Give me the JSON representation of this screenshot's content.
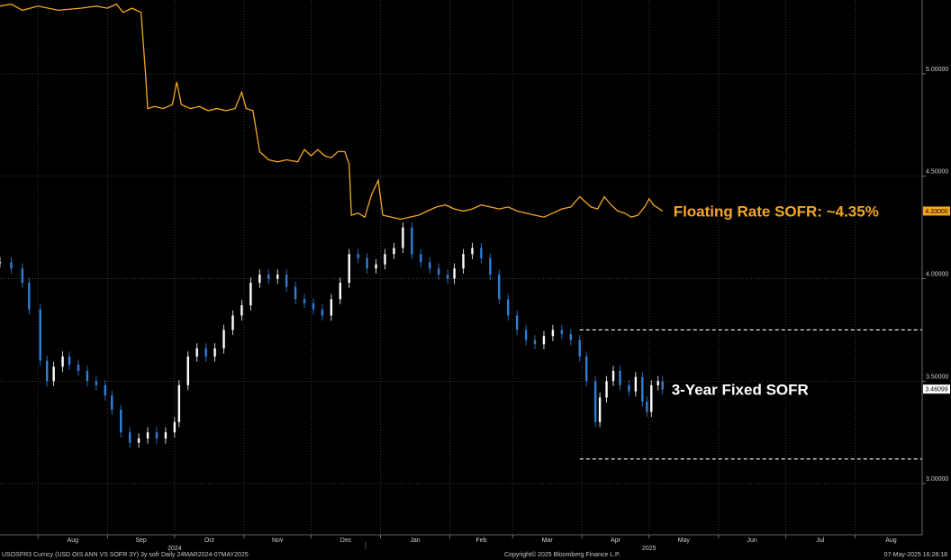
{
  "chart_data": {
    "type": "line",
    "title": "",
    "xlabel": "",
    "ylabel": "",
    "x_range": [
      "2024-07-15",
      "2025-08-31"
    ],
    "ylim": [
      2.75,
      5.36
    ],
    "grid": true,
    "x_ticks": [
      {
        "date": "2024-08-01",
        "label": "Aug"
      },
      {
        "date": "2024-09-01",
        "label": "Sep"
      },
      {
        "date": "2024-10-01",
        "label": "Oct"
      },
      {
        "date": "2024-11-01",
        "label": "Nov"
      },
      {
        "date": "2024-12-01",
        "label": "Dec"
      },
      {
        "date": "2025-01-01",
        "label": "Jan"
      },
      {
        "date": "2025-02-01",
        "label": "Feb"
      },
      {
        "date": "2025-03-01",
        "label": "Mar"
      },
      {
        "date": "2025-04-01",
        "label": "Apr"
      },
      {
        "date": "2025-05-01",
        "label": "May"
      },
      {
        "date": "2025-06-01",
        "label": "Jun"
      },
      {
        "date": "2025-07-01",
        "label": "Jul"
      },
      {
        "date": "2025-08-01",
        "label": "Aug"
      }
    ],
    "year_labels": [
      {
        "date": "2024-10-01",
        "label": "2024"
      },
      {
        "date": "2025-05-01",
        "label": "2025"
      }
    ],
    "y_ticks": [
      {
        "value": 5.0,
        "label": "5.00000"
      },
      {
        "value": 4.5,
        "label": "4.50000"
      },
      {
        "value": 4.0,
        "label": "4.00000"
      },
      {
        "value": 3.5,
        "label": "3.50000"
      },
      {
        "value": 3.0,
        "label": "3.00000"
      }
    ],
    "series": [
      {
        "name": "Floating Rate SOFR",
        "color": "#f5a623",
        "style": "line",
        "last_value_label": "4.33000",
        "last_value": 4.33,
        "annotation": "Floating Rate SOFR: ~4.35%",
        "points": [
          [
            "2024-07-15",
            5.33
          ],
          [
            "2024-07-20",
            5.34
          ],
          [
            "2024-07-25",
            5.31
          ],
          [
            "2024-08-01",
            5.33
          ],
          [
            "2024-08-10",
            5.31
          ],
          [
            "2024-08-20",
            5.32
          ],
          [
            "2024-08-27",
            5.33
          ],
          [
            "2024-09-01",
            5.32
          ],
          [
            "2024-09-05",
            5.34
          ],
          [
            "2024-09-08",
            5.3
          ],
          [
            "2024-09-12",
            5.32
          ],
          [
            "2024-09-16",
            5.3
          ],
          [
            "2024-09-18",
            5.0
          ],
          [
            "2024-09-19",
            4.83
          ],
          [
            "2024-09-22",
            4.84
          ],
          [
            "2024-09-26",
            4.83
          ],
          [
            "2024-09-30",
            4.85
          ],
          [
            "2024-10-02",
            4.96
          ],
          [
            "2024-10-04",
            4.85
          ],
          [
            "2024-10-08",
            4.83
          ],
          [
            "2024-10-12",
            4.84
          ],
          [
            "2024-10-16",
            4.82
          ],
          [
            "2024-10-20",
            4.83
          ],
          [
            "2024-10-24",
            4.82
          ],
          [
            "2024-10-28",
            4.83
          ],
          [
            "2024-10-31",
            4.91
          ],
          [
            "2024-11-02",
            4.83
          ],
          [
            "2024-11-05",
            4.82
          ],
          [
            "2024-11-08",
            4.62
          ],
          [
            "2024-11-12",
            4.58
          ],
          [
            "2024-11-16",
            4.57
          ],
          [
            "2024-11-20",
            4.58
          ],
          [
            "2024-11-25",
            4.57
          ],
          [
            "2024-11-28",
            4.63
          ],
          [
            "2024-12-01",
            4.6
          ],
          [
            "2024-12-04",
            4.63
          ],
          [
            "2024-12-07",
            4.6
          ],
          [
            "2024-12-10",
            4.59
          ],
          [
            "2024-12-13",
            4.62
          ],
          [
            "2024-12-16",
            4.62
          ],
          [
            "2024-12-18",
            4.56
          ],
          [
            "2024-12-19",
            4.31
          ],
          [
            "2024-12-22",
            4.32
          ],
          [
            "2024-12-25",
            4.3
          ],
          [
            "2024-12-28",
            4.41
          ],
          [
            "2024-12-31",
            4.48
          ],
          [
            "2025-01-02",
            4.31
          ],
          [
            "2025-01-06",
            4.3
          ],
          [
            "2025-01-10",
            4.29
          ],
          [
            "2025-01-14",
            4.3
          ],
          [
            "2025-01-18",
            4.31
          ],
          [
            "2025-01-22",
            4.33
          ],
          [
            "2025-01-26",
            4.35
          ],
          [
            "2025-01-30",
            4.36
          ],
          [
            "2025-02-03",
            4.34
          ],
          [
            "2025-02-07",
            4.33
          ],
          [
            "2025-02-11",
            4.34
          ],
          [
            "2025-02-15",
            4.36
          ],
          [
            "2025-02-19",
            4.35
          ],
          [
            "2025-02-23",
            4.34
          ],
          [
            "2025-02-27",
            4.35
          ],
          [
            "2025-03-03",
            4.33
          ],
          [
            "2025-03-07",
            4.32
          ],
          [
            "2025-03-11",
            4.31
          ],
          [
            "2025-03-15",
            4.3
          ],
          [
            "2025-03-19",
            4.32
          ],
          [
            "2025-03-23",
            4.34
          ],
          [
            "2025-03-27",
            4.35
          ],
          [
            "2025-03-31",
            4.4
          ],
          [
            "2025-04-02",
            4.38
          ],
          [
            "2025-04-05",
            4.35
          ],
          [
            "2025-04-08",
            4.34
          ],
          [
            "2025-04-11",
            4.4
          ],
          [
            "2025-04-14",
            4.36
          ],
          [
            "2025-04-17",
            4.33
          ],
          [
            "2025-04-20",
            4.32
          ],
          [
            "2025-04-23",
            4.3
          ],
          [
            "2025-04-26",
            4.31
          ],
          [
            "2025-04-29",
            4.35
          ],
          [
            "2025-05-01",
            4.39
          ],
          [
            "2025-05-03",
            4.36
          ],
          [
            "2025-05-07",
            4.33
          ]
        ]
      },
      {
        "name": "3-Year Fixed SOFR",
        "color": "#ffffff",
        "style": "candles",
        "up_color": "#ffffff",
        "down_color": "#2f7fd8",
        "last_value_label": "3.46099",
        "last_value": 3.461,
        "annotation": "3-Year Fixed SOFR",
        "points": [
          [
            "2024-07-15",
            4.08
          ],
          [
            "2024-07-20",
            4.05
          ],
          [
            "2024-07-25",
            3.98
          ],
          [
            "2024-07-28",
            3.85
          ],
          [
            "2024-08-02",
            3.6
          ],
          [
            "2024-08-05",
            3.5
          ],
          [
            "2024-08-08",
            3.57
          ],
          [
            "2024-08-12",
            3.62
          ],
          [
            "2024-08-15",
            3.58
          ],
          [
            "2024-08-19",
            3.55
          ],
          [
            "2024-08-23",
            3.5
          ],
          [
            "2024-08-27",
            3.48
          ],
          [
            "2024-08-31",
            3.43
          ],
          [
            "2024-09-03",
            3.36
          ],
          [
            "2024-09-07",
            3.25
          ],
          [
            "2024-09-11",
            3.2
          ],
          [
            "2024-09-15",
            3.22
          ],
          [
            "2024-09-19",
            3.25
          ],
          [
            "2024-09-23",
            3.22
          ],
          [
            "2024-09-27",
            3.25
          ],
          [
            "2024-10-01",
            3.3
          ],
          [
            "2024-10-03",
            3.48
          ],
          [
            "2024-10-07",
            3.62
          ],
          [
            "2024-10-11",
            3.66
          ],
          [
            "2024-10-15",
            3.62
          ],
          [
            "2024-10-19",
            3.66
          ],
          [
            "2024-10-23",
            3.75
          ],
          [
            "2024-10-27",
            3.82
          ],
          [
            "2024-10-31",
            3.87
          ],
          [
            "2024-11-04",
            3.98
          ],
          [
            "2024-11-08",
            4.02
          ],
          [
            "2024-11-12",
            4.0
          ],
          [
            "2024-11-16",
            4.02
          ],
          [
            "2024-11-20",
            3.96
          ],
          [
            "2024-11-24",
            3.9
          ],
          [
            "2024-11-28",
            3.88
          ],
          [
            "2024-12-02",
            3.85
          ],
          [
            "2024-12-06",
            3.82
          ],
          [
            "2024-12-10",
            3.9
          ],
          [
            "2024-12-14",
            3.98
          ],
          [
            "2024-12-18",
            4.12
          ],
          [
            "2024-12-22",
            4.1
          ],
          [
            "2024-12-26",
            4.05
          ],
          [
            "2024-12-30",
            4.07
          ],
          [
            "2025-01-03",
            4.12
          ],
          [
            "2025-01-07",
            4.15
          ],
          [
            "2025-01-11",
            4.25
          ],
          [
            "2025-01-15",
            4.12
          ],
          [
            "2025-01-19",
            4.08
          ],
          [
            "2025-01-23",
            4.05
          ],
          [
            "2025-01-27",
            4.02
          ],
          [
            "2025-01-31",
            4.0
          ],
          [
            "2025-02-03",
            4.05
          ],
          [
            "2025-02-07",
            4.12
          ],
          [
            "2025-02-11",
            4.15
          ],
          [
            "2025-02-15",
            4.1
          ],
          [
            "2025-02-19",
            4.02
          ],
          [
            "2025-02-23",
            3.9
          ],
          [
            "2025-02-27",
            3.82
          ],
          [
            "2025-03-03",
            3.75
          ],
          [
            "2025-03-07",
            3.7
          ],
          [
            "2025-03-11",
            3.68
          ],
          [
            "2025-03-15",
            3.72
          ],
          [
            "2025-03-19",
            3.75
          ],
          [
            "2025-03-23",
            3.73
          ],
          [
            "2025-03-27",
            3.7
          ],
          [
            "2025-03-31",
            3.62
          ],
          [
            "2025-04-03",
            3.5
          ],
          [
            "2025-04-07",
            3.3
          ],
          [
            "2025-04-09",
            3.42
          ],
          [
            "2025-04-12",
            3.5
          ],
          [
            "2025-04-15",
            3.55
          ],
          [
            "2025-04-18",
            3.48
          ],
          [
            "2025-04-22",
            3.45
          ],
          [
            "2025-04-25",
            3.52
          ],
          [
            "2025-04-28",
            3.4
          ],
          [
            "2025-04-30",
            3.35
          ],
          [
            "2025-05-02",
            3.48
          ],
          [
            "2025-05-05",
            3.5
          ],
          [
            "2025-05-07",
            3.46
          ]
        ]
      }
    ],
    "reference_lines": [
      {
        "value": 3.75,
        "style": "dashed",
        "from": "2025-03-31"
      },
      {
        "value": 3.12,
        "style": "dashed",
        "from": "2025-03-31"
      }
    ]
  },
  "footer": {
    "left": "USOSFR3 Curncy (USD OIS  ANN VS SOFR 3Y) 3y sofr  Daily 24MAR2024-07MAY2025",
    "center": "Copyright© 2025 Bloomberg Finance L.P.",
    "right": "07-May-2025 16:28:18"
  }
}
